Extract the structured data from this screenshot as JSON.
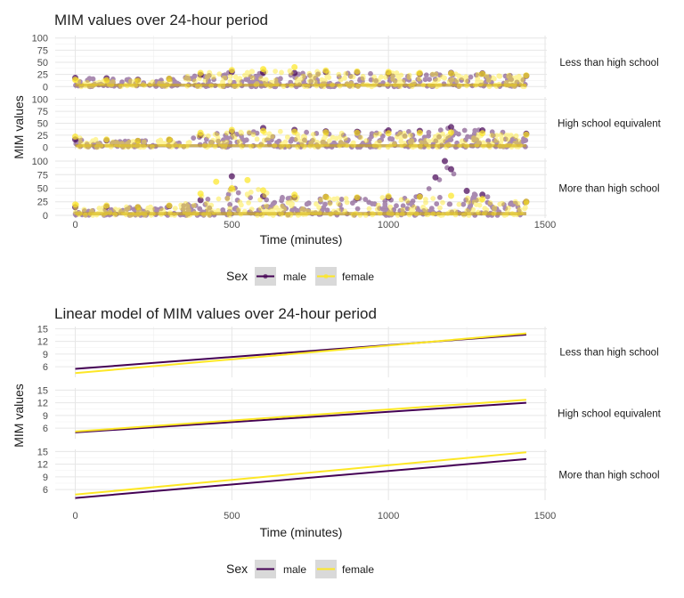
{
  "chart_data": [
    {
      "type": "scatter",
      "title": "MIM values over 24-hour period",
      "xlabel": "Time (minutes)",
      "ylabel": "MIM values",
      "xlim": [
        -30,
        1500
      ],
      "ylim": [
        -5,
        105
      ],
      "x_ticks": [
        0,
        500,
        1000,
        1500
      ],
      "y_ticks": [
        0,
        25,
        50,
        75,
        100
      ],
      "grid": true,
      "legend": {
        "title": "Sex",
        "position": "bottom",
        "entries": [
          "male",
          "female"
        ]
      },
      "facets": [
        {
          "label": "Less than high school",
          "series": [
            {
              "name": "male",
              "color": "#440154",
              "x": [
                0,
                100,
                200,
                300,
                400,
                500,
                600,
                700,
                800,
                900,
                1000,
                1100,
                1200,
                1300,
                1440
              ],
              "y": [
                18,
                17,
                14,
                16,
                24,
                30,
                29,
                28,
                30,
                29,
                27,
                26,
                28,
                27,
                22
              ]
            },
            {
              "name": "female",
              "color": "#FDE725",
              "x": [
                0,
                100,
                200,
                300,
                400,
                500,
                600,
                700,
                800,
                900,
                1000,
                1100,
                1200,
                1300,
                1440
              ],
              "y": [
                14,
                13,
                12,
                16,
                28,
                34,
                36,
                40,
                33,
                31,
                30,
                28,
                27,
                26,
                23
              ]
            }
          ]
        },
        {
          "label": "High school equivalent",
          "series": [
            {
              "name": "male",
              "color": "#440154",
              "x": [
                0,
                100,
                200,
                300,
                400,
                500,
                600,
                700,
                800,
                900,
                1000,
                1100,
                1200,
                1300,
                1440
              ],
              "y": [
                16,
                14,
                13,
                15,
                25,
                32,
                40,
                36,
                33,
                32,
                35,
                34,
                42,
                35,
                28
              ]
            },
            {
              "name": "female",
              "color": "#FDE725",
              "x": [
                0,
                100,
                200,
                300,
                400,
                500,
                600,
                700,
                800,
                900,
                1000,
                1100,
                1200,
                1300,
                1440
              ],
              "y": [
                22,
                16,
                13,
                16,
                30,
                36,
                34,
                32,
                31,
                30,
                29,
                30,
                31,
                29,
                26
              ]
            }
          ]
        },
        {
          "label": "More than high school",
          "series": [
            {
              "name": "male",
              "color": "#440154",
              "x": [
                0,
                100,
                200,
                300,
                400,
                500,
                600,
                700,
                800,
                900,
                1000,
                1100,
                1150,
                1180,
                1200,
                1250,
                1300,
                1440
              ],
              "y": [
                15,
                16,
                15,
                17,
                28,
                72,
                35,
                33,
                34,
                32,
                33,
                35,
                70,
                100,
                85,
                45,
                38,
                25
              ]
            },
            {
              "name": "female",
              "color": "#FDE725",
              "x": [
                0,
                100,
                200,
                300,
                400,
                450,
                500,
                550,
                600,
                700,
                800,
                900,
                1000,
                1100,
                1200,
                1300,
                1440
              ],
              "y": [
                20,
                18,
                15,
                18,
                40,
                62,
                50,
                65,
                46,
                38,
                34,
                33,
                35,
                34,
                36,
                30,
                25
              ]
            }
          ]
        }
      ]
    },
    {
      "type": "line",
      "title": "Linear model of MIM values over 24-hour period",
      "xlabel": "Time (minutes)",
      "ylabel": "MIM values",
      "xlim": [
        -30,
        1500
      ],
      "ylim": [
        3.5,
        15.5
      ],
      "x_ticks": [
        0,
        500,
        1000,
        1500
      ],
      "y_ticks": [
        6,
        9,
        12,
        15
      ],
      "grid": true,
      "legend": {
        "title": "Sex",
        "position": "bottom",
        "entries": [
          "male",
          "female"
        ]
      },
      "facets": [
        {
          "label": "Less than high school",
          "series": [
            {
              "name": "male",
              "color": "#440154",
              "x": [
                0,
                1440
              ],
              "y": [
                5.5,
                13.6
              ]
            },
            {
              "name": "female",
              "color": "#FDE725",
              "x": [
                0,
                1440
              ],
              "y": [
                4.5,
                13.9
              ]
            }
          ]
        },
        {
          "label": "High school equivalent",
          "series": [
            {
              "name": "male",
              "color": "#440154",
              "x": [
                0,
                1440
              ],
              "y": [
                5.0,
                12.0
              ]
            },
            {
              "name": "female",
              "color": "#FDE725",
              "x": [
                0,
                1440
              ],
              "y": [
                5.2,
                12.7
              ]
            }
          ]
        },
        {
          "label": "More than high school",
          "series": [
            {
              "name": "male",
              "color": "#440154",
              "x": [
                0,
                1440
              ],
              "y": [
                4.0,
                13.2
              ]
            },
            {
              "name": "female",
              "color": "#FDE725",
              "x": [
                0,
                1440
              ],
              "y": [
                4.8,
                14.8
              ]
            }
          ]
        }
      ]
    }
  ]
}
